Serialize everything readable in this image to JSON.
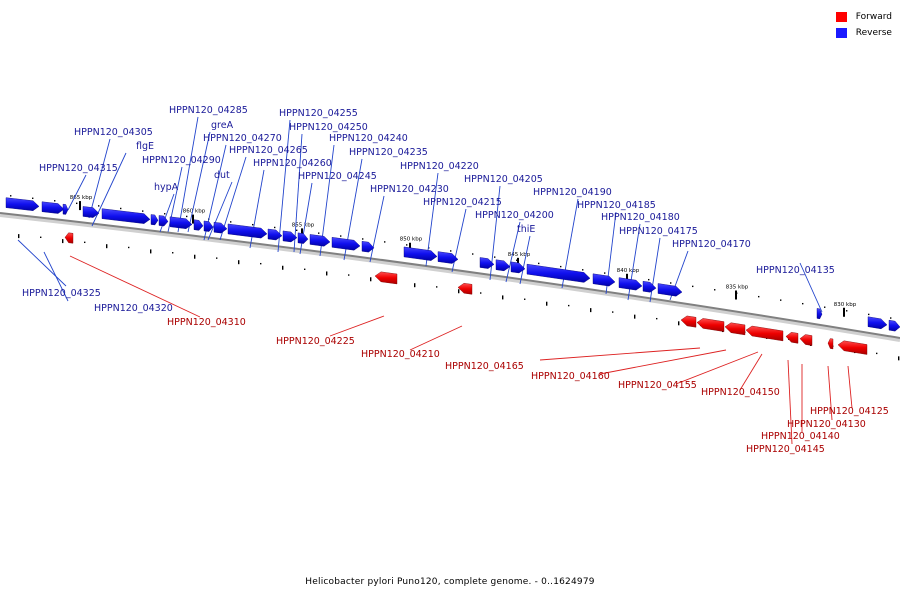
{
  "legend": {
    "forward_label": "Forward",
    "reverse_label": "Reverse",
    "forward_color": "#ff0000",
    "reverse_color": "#1a1aff"
  },
  "caption": "Helicobacter pylori Puno120, complete genome. - 0..1624979",
  "colors": {
    "reverse_label": "#1a1a99",
    "forward_label": "#aa0000",
    "reverse_line": "#2244cc",
    "forward_line": "#dd2222",
    "axis": "#808080"
  },
  "ticks": [
    "865 kbp",
    "860 kbp",
    "855 kbp",
    "850 kbp",
    "845 kbp",
    "840 kbp",
    "835 kbp",
    "830 kbp"
  ],
  "reverse_genes": [
    "HPPN120_04325",
    "HPPN120_04320",
    "HPPN120_04315",
    "HPPN120_04305",
    "flgE",
    "hypA",
    "HPPN120_04290",
    "HPPN120_04285",
    "greA",
    "HPPN120_04270",
    "dut",
    "HPPN120_04265",
    "HPPN120_04260",
    "HPPN120_04255",
    "HPPN120_04250",
    "HPPN120_04245",
    "HPPN120_04240",
    "HPPN120_04235",
    "HPPN120_04230",
    "HPPN120_04220",
    "HPPN120_04215",
    "HPPN120_04205",
    "HPPN120_04200",
    "thiE",
    "HPPN120_04190",
    "HPPN120_04185",
    "HPPN120_04180",
    "HPPN120_04175",
    "HPPN120_04170",
    "HPPN120_04135"
  ],
  "forward_genes": [
    "HPPN120_04310",
    "HPPN120_04225",
    "HPPN120_04210",
    "HPPN120_04165",
    "HPPN120_04160",
    "HPPN120_04155",
    "HPPN120_04150",
    "HPPN120_04145",
    "HPPN120_04140",
    "HPPN120_04130",
    "HPPN120_04125"
  ]
}
